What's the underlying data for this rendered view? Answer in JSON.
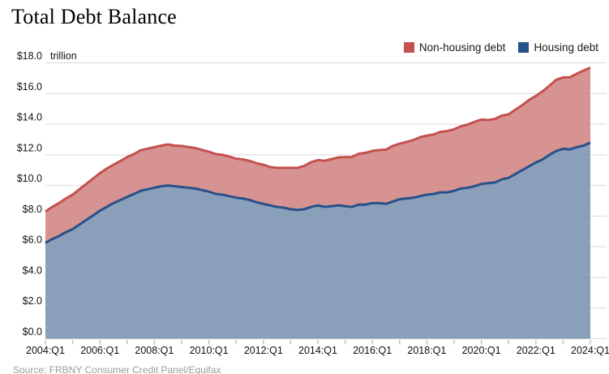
{
  "title": "Total Debt Balance",
  "legend": [
    {
      "label": "Non-housing debt",
      "color": "#c4514e"
    },
    {
      "label": "Housing debt",
      "color": "#27518a"
    }
  ],
  "source": "Source: FRBNY Consumer Credit Panel/Equifax",
  "chart_data": {
    "type": "area",
    "stacked": true,
    "title": "Total Debt Balance",
    "y_unit_label": "trillion",
    "ylim": [
      0,
      18
    ],
    "grid": "horizontal",
    "legend_position": "top-right",
    "x_values_note": "quarterly from 2004:Q1 to 2024:Q1, 81 points, yearly tick marks",
    "x_tick_labels": [
      "2004:Q1",
      "2006:Q1",
      "2008:Q1",
      "2010:Q1",
      "2012:Q1",
      "2014:Q1",
      "2016:Q1",
      "2018:Q1",
      "2020:Q1",
      "2022:Q1",
      "2024:Q1"
    ],
    "y_tick_labels": [
      "$18.0",
      "$16.0",
      "$14.0",
      "$12.0",
      "$10.0",
      "$8.0",
      "$6.0",
      "$4.0",
      "$2.0",
      "$0.0"
    ],
    "series": [
      {
        "name": "Housing debt",
        "stroke": "#27518a",
        "fill": "#7a92b1",
        "values": [
          6.25,
          6.5,
          6.7,
          6.95,
          7.15,
          7.45,
          7.75,
          8.05,
          8.35,
          8.6,
          8.85,
          9.05,
          9.25,
          9.45,
          9.65,
          9.75,
          9.85,
          9.95,
          10.0,
          9.95,
          9.9,
          9.85,
          9.8,
          9.7,
          9.6,
          9.45,
          9.4,
          9.3,
          9.2,
          9.15,
          9.05,
          8.9,
          8.8,
          8.7,
          8.6,
          8.55,
          8.45,
          8.4,
          8.45,
          8.6,
          8.7,
          8.6,
          8.65,
          8.7,
          8.65,
          8.6,
          8.75,
          8.75,
          8.85,
          8.85,
          8.8,
          8.95,
          9.1,
          9.15,
          9.2,
          9.3,
          9.4,
          9.45,
          9.55,
          9.55,
          9.65,
          9.8,
          9.85,
          9.95,
          10.1,
          10.15,
          10.2,
          10.4,
          10.5,
          10.75,
          11.0,
          11.25,
          11.5,
          11.7,
          12.0,
          12.25,
          12.4,
          12.35,
          12.5,
          12.6,
          12.8
        ]
      },
      {
        "name": "Non-housing debt",
        "stroke": "#c4514e",
        "fill": "#d28482",
        "values": [
          2.05,
          2.1,
          2.15,
          2.2,
          2.25,
          2.3,
          2.35,
          2.4,
          2.45,
          2.5,
          2.5,
          2.55,
          2.6,
          2.6,
          2.65,
          2.65,
          2.65,
          2.65,
          2.68,
          2.65,
          2.68,
          2.66,
          2.64,
          2.62,
          2.6,
          2.6,
          2.6,
          2.58,
          2.55,
          2.55,
          2.55,
          2.55,
          2.55,
          2.5,
          2.55,
          2.6,
          2.7,
          2.75,
          2.83,
          2.92,
          2.96,
          3.01,
          3.07,
          3.13,
          3.2,
          3.26,
          3.32,
          3.38,
          3.41,
          3.46,
          3.54,
          3.63,
          3.63,
          3.69,
          3.76,
          3.85,
          3.85,
          3.88,
          3.95,
          4.0,
          4.02,
          4.06,
          4.13,
          4.2,
          4.2,
          4.12,
          4.14,
          4.16,
          4.14,
          4.2,
          4.24,
          4.33,
          4.34,
          4.45,
          4.51,
          4.65,
          4.65,
          4.71,
          4.79,
          4.9,
          4.89
        ]
      }
    ],
    "stacked_top_anchors": {
      "2004:Q1": 8.3,
      "2008:Q3_peak": 12.68,
      "2013:Q2_trough": 11.15,
      "2024:Q1": 17.69
    }
  }
}
